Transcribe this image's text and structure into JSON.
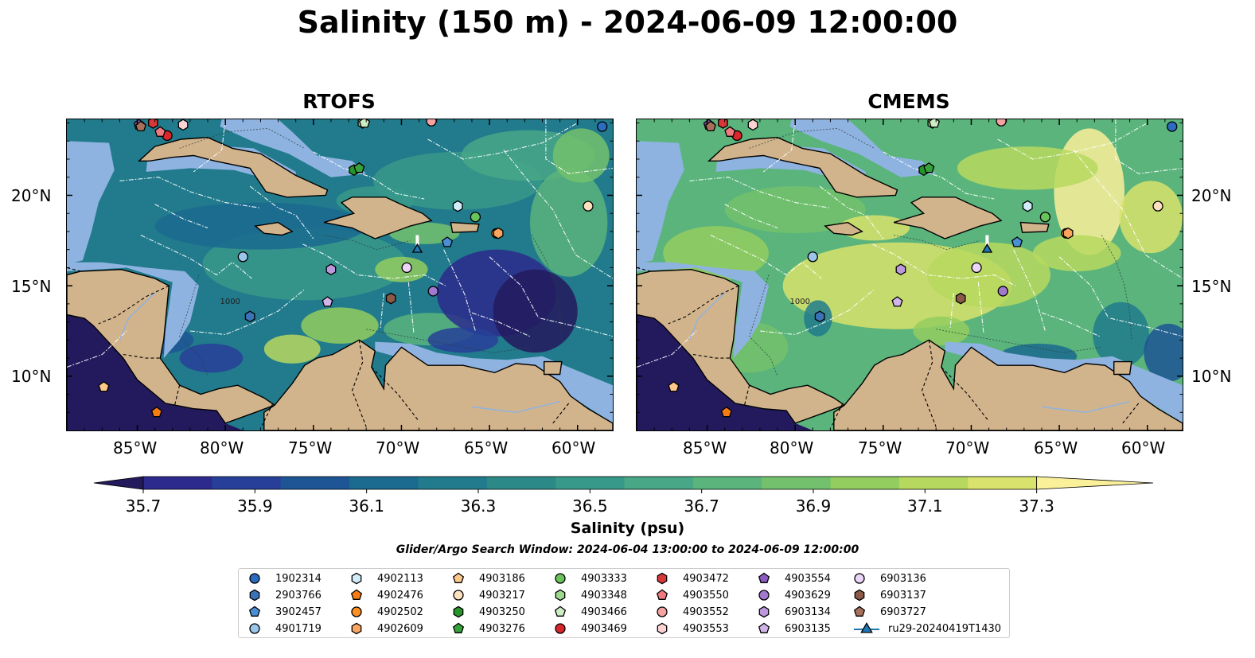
{
  "title": "Salinity (150 m) - 2024-06-09 12:00:00",
  "panels": [
    {
      "title": "RTOFS",
      "palette": "rtofs"
    },
    {
      "title": "CMEMS",
      "palette": "cmems"
    }
  ],
  "x_ticks": [
    "85°W",
    "80°W",
    "75°W",
    "70°W",
    "65°W",
    "60°W"
  ],
  "y_ticks": [
    "20°N",
    "15°N",
    "10°N"
  ],
  "lon_range": [
    -89,
    -58
  ],
  "lat_range": [
    7,
    24.2
  ],
  "colorbar": {
    "label": "Salinity (psu)",
    "range": [
      35.6,
      37.4
    ],
    "ticks": [
      "35.7",
      "35.9",
      "36.1",
      "36.3",
      "36.5",
      "36.7",
      "36.9",
      "37.1",
      "37.3"
    ],
    "colors": [
      "#231a5e",
      "#2c2a8c",
      "#273f99",
      "#1d5595",
      "#1b6a8f",
      "#217b8c",
      "#2b8a88",
      "#37998a",
      "#47a786",
      "#5ab47c",
      "#73c16c",
      "#93cc5f",
      "#b7d85f",
      "#d9e26c",
      "#fbf09a"
    ]
  },
  "search_window": "Glider/Argo Search Window: 2024-06-04 13:00:00 to 2024-06-09 12:00:00",
  "contour_label": "1000",
  "legend": [
    {
      "label": "1902314",
      "color": "#2b6cc0",
      "marker": "circle"
    },
    {
      "label": "2903766",
      "color": "#3a73b6",
      "marker": "hexagon"
    },
    {
      "label": "3902457",
      "color": "#4a8ed6",
      "marker": "pentagon"
    },
    {
      "label": "4901719",
      "color": "#9bc6ea",
      "marker": "circle"
    },
    {
      "label": "4902113",
      "color": "#d2ecf9",
      "marker": "hexagon"
    },
    {
      "label": "4902476",
      "color": "#f57c12",
      "marker": "pentagon"
    },
    {
      "label": "4902502",
      "color": "#fb8f22",
      "marker": "circle"
    },
    {
      "label": "4902609",
      "color": "#fba560",
      "marker": "hexagon"
    },
    {
      "label": "4903186",
      "color": "#fdc98a",
      "marker": "pentagon"
    },
    {
      "label": "4903217",
      "color": "#fde0bf",
      "marker": "circle"
    },
    {
      "label": "4903250",
      "color": "#27962a",
      "marker": "hexagon"
    },
    {
      "label": "4903276",
      "color": "#36a23a",
      "marker": "pentagon"
    },
    {
      "label": "4903333",
      "color": "#6ac25a",
      "marker": "circle"
    },
    {
      "label": "4903348",
      "color": "#9dd98c",
      "marker": "hexagon"
    },
    {
      "label": "4903466",
      "color": "#cdedc4",
      "marker": "pentagon"
    },
    {
      "label": "4903469",
      "color": "#d9262a",
      "marker": "circle"
    },
    {
      "label": "4903472",
      "color": "#d83838",
      "marker": "hexagon"
    },
    {
      "label": "4903550",
      "color": "#ee7a7e",
      "marker": "pentagon"
    },
    {
      "label": "4903552",
      "color": "#f6a2a3",
      "marker": "circle"
    },
    {
      "label": "4903553",
      "color": "#fcd2d3",
      "marker": "hexagon"
    },
    {
      "label": "4903554",
      "color": "#8c5bbf",
      "marker": "pentagon"
    },
    {
      "label": "4903629",
      "color": "#a179cf",
      "marker": "circle"
    },
    {
      "label": "6903134",
      "color": "#bc98dd",
      "marker": "hexagon"
    },
    {
      "label": "6903135",
      "color": "#d1b4ea",
      "marker": "pentagon"
    },
    {
      "label": "6903136",
      "color": "#ecd6f8",
      "marker": "circle"
    },
    {
      "label": "6903137",
      "color": "#8a5948",
      "marker": "hexagon"
    },
    {
      "label": "6903727",
      "color": "#a8705a",
      "marker": "pentagon"
    },
    {
      "label": "ru29-20240419T1430",
      "color": "#1f77b4",
      "marker": "triangle-line"
    }
  ],
  "platforms": [
    {
      "id": "1902314",
      "lon": -58.6,
      "lat": 23.8
    },
    {
      "id": "2903766",
      "lon": -78.6,
      "lat": 13.3
    },
    {
      "id": "3902457",
      "lon": -67.4,
      "lat": 17.4
    },
    {
      "id": "4901719",
      "lon": -79.0,
      "lat": 16.6
    },
    {
      "id": "4902113",
      "lon": -66.8,
      "lat": 19.4
    },
    {
      "id": "4902476",
      "lon": -83.9,
      "lat": 8.0
    },
    {
      "id": "4902502",
      "lon": -64.6,
      "lat": 17.9
    },
    {
      "id": "4902609",
      "lon": -64.5,
      "lat": 17.9
    },
    {
      "id": "4903186",
      "lon": -86.9,
      "lat": 9.4
    },
    {
      "id": "4903217",
      "lon": -59.4,
      "lat": 19.4
    },
    {
      "id": "4903250",
      "lon": -72.7,
      "lat": 21.4
    },
    {
      "id": "4903276",
      "lon": -72.4,
      "lat": 21.5
    },
    {
      "id": "4903333",
      "lon": -65.8,
      "lat": 18.8
    },
    {
      "id": "4903348",
      "lon": -72.2,
      "lat": 24.0
    },
    {
      "id": "4903466",
      "lon": -72.1,
      "lat": 24.0
    },
    {
      "id": "4903469",
      "lon": -83.3,
      "lat": 23.3
    },
    {
      "id": "4903472",
      "lon": -84.1,
      "lat": 24.0
    },
    {
      "id": "4903550",
      "lon": -83.7,
      "lat": 23.5
    },
    {
      "id": "4903552",
      "lon": -68.3,
      "lat": 24.1
    },
    {
      "id": "4903553",
      "lon": -82.4,
      "lat": 23.9
    },
    {
      "id": "4903554",
      "lon": -84.9,
      "lat": 23.9
    },
    {
      "id": "4903629",
      "lon": -68.2,
      "lat": 14.7
    },
    {
      "id": "6903134",
      "lon": -74.0,
      "lat": 15.9
    },
    {
      "id": "6903135",
      "lon": -74.2,
      "lat": 14.1
    },
    {
      "id": "6903136",
      "lon": -69.7,
      "lat": 16.0
    },
    {
      "id": "6903137",
      "lon": -70.6,
      "lat": 14.3
    },
    {
      "id": "6903727",
      "lon": -84.8,
      "lat": 23.8
    },
    {
      "id": "ru29-20240419T1430",
      "lon": -69.1,
      "lat": 17.0,
      "track": [
        [
          -69.1,
          17.8
        ],
        [
          -69.1,
          17.0
        ]
      ]
    }
  ]
}
